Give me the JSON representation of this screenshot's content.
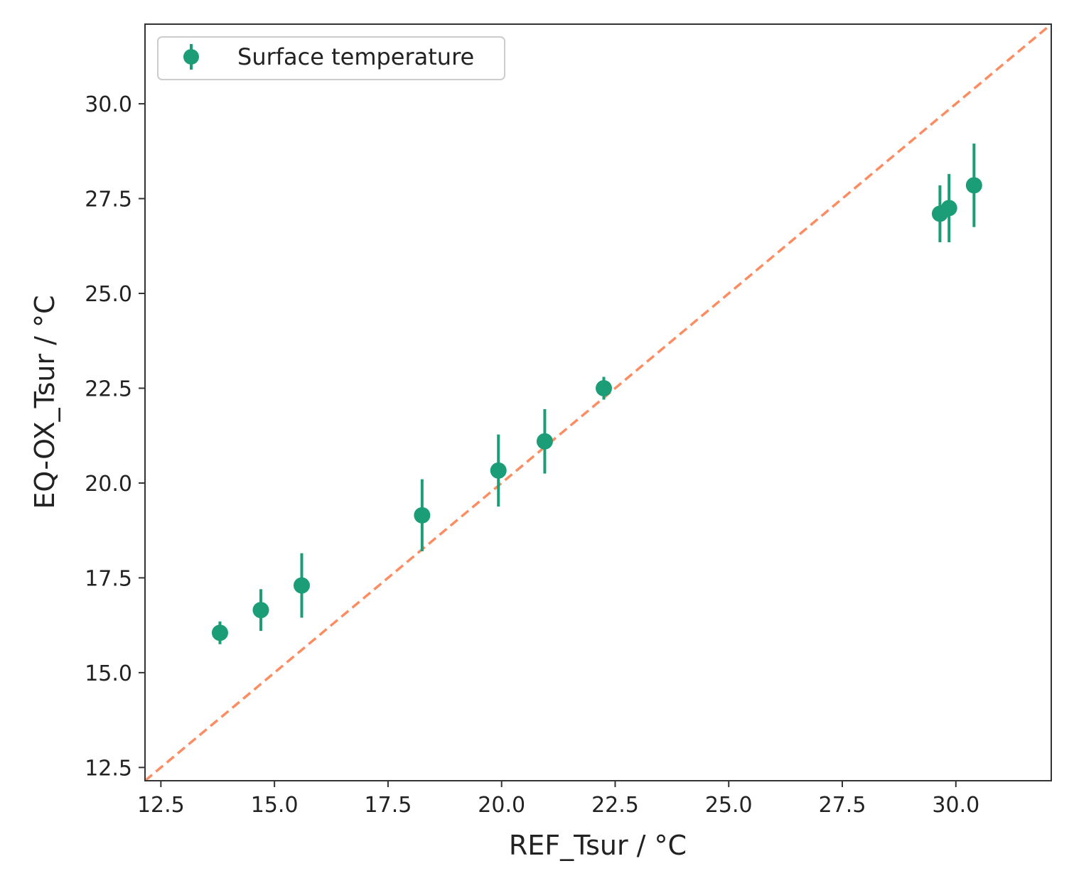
{
  "chart_data": {
    "type": "scatter",
    "title": "",
    "xlabel": "REF_Tsur / °C",
    "ylabel": "EQ-OX_Tsur / °C",
    "xlim": [
      12.15,
      32.1
    ],
    "ylim": [
      12.15,
      32.1
    ],
    "xticks": [
      "12.5",
      "15.0",
      "17.5",
      "20.0",
      "22.5",
      "25.0",
      "27.5",
      "30.0"
    ],
    "yticks": [
      "12.5",
      "15.0",
      "17.5",
      "20.0",
      "22.5",
      "25.0",
      "27.5",
      "30.0"
    ],
    "grid": false,
    "legend_position": "top-left",
    "series": [
      {
        "name": "Surface temperature",
        "color": "#1b9e77",
        "points": [
          {
            "x": 13.8,
            "y": 16.05,
            "err": 0.3
          },
          {
            "x": 14.7,
            "y": 16.65,
            "err": 0.55
          },
          {
            "x": 15.6,
            "y": 17.3,
            "err": 0.85
          },
          {
            "x": 18.25,
            "y": 19.15,
            "err": 0.95
          },
          {
            "x": 19.93,
            "y": 20.33,
            "err": 0.95
          },
          {
            "x": 20.95,
            "y": 21.1,
            "err": 0.85
          },
          {
            "x": 22.25,
            "y": 22.5,
            "err": 0.3
          },
          {
            "x": 29.65,
            "y": 27.1,
            "err": 0.75
          },
          {
            "x": 29.85,
            "y": 27.25,
            "err": 0.9
          },
          {
            "x": 30.4,
            "y": 27.85,
            "err": 1.1
          }
        ]
      }
    ],
    "reference_line": {
      "name": "y = x",
      "color": "#fc8d62",
      "style": "dashed"
    }
  }
}
